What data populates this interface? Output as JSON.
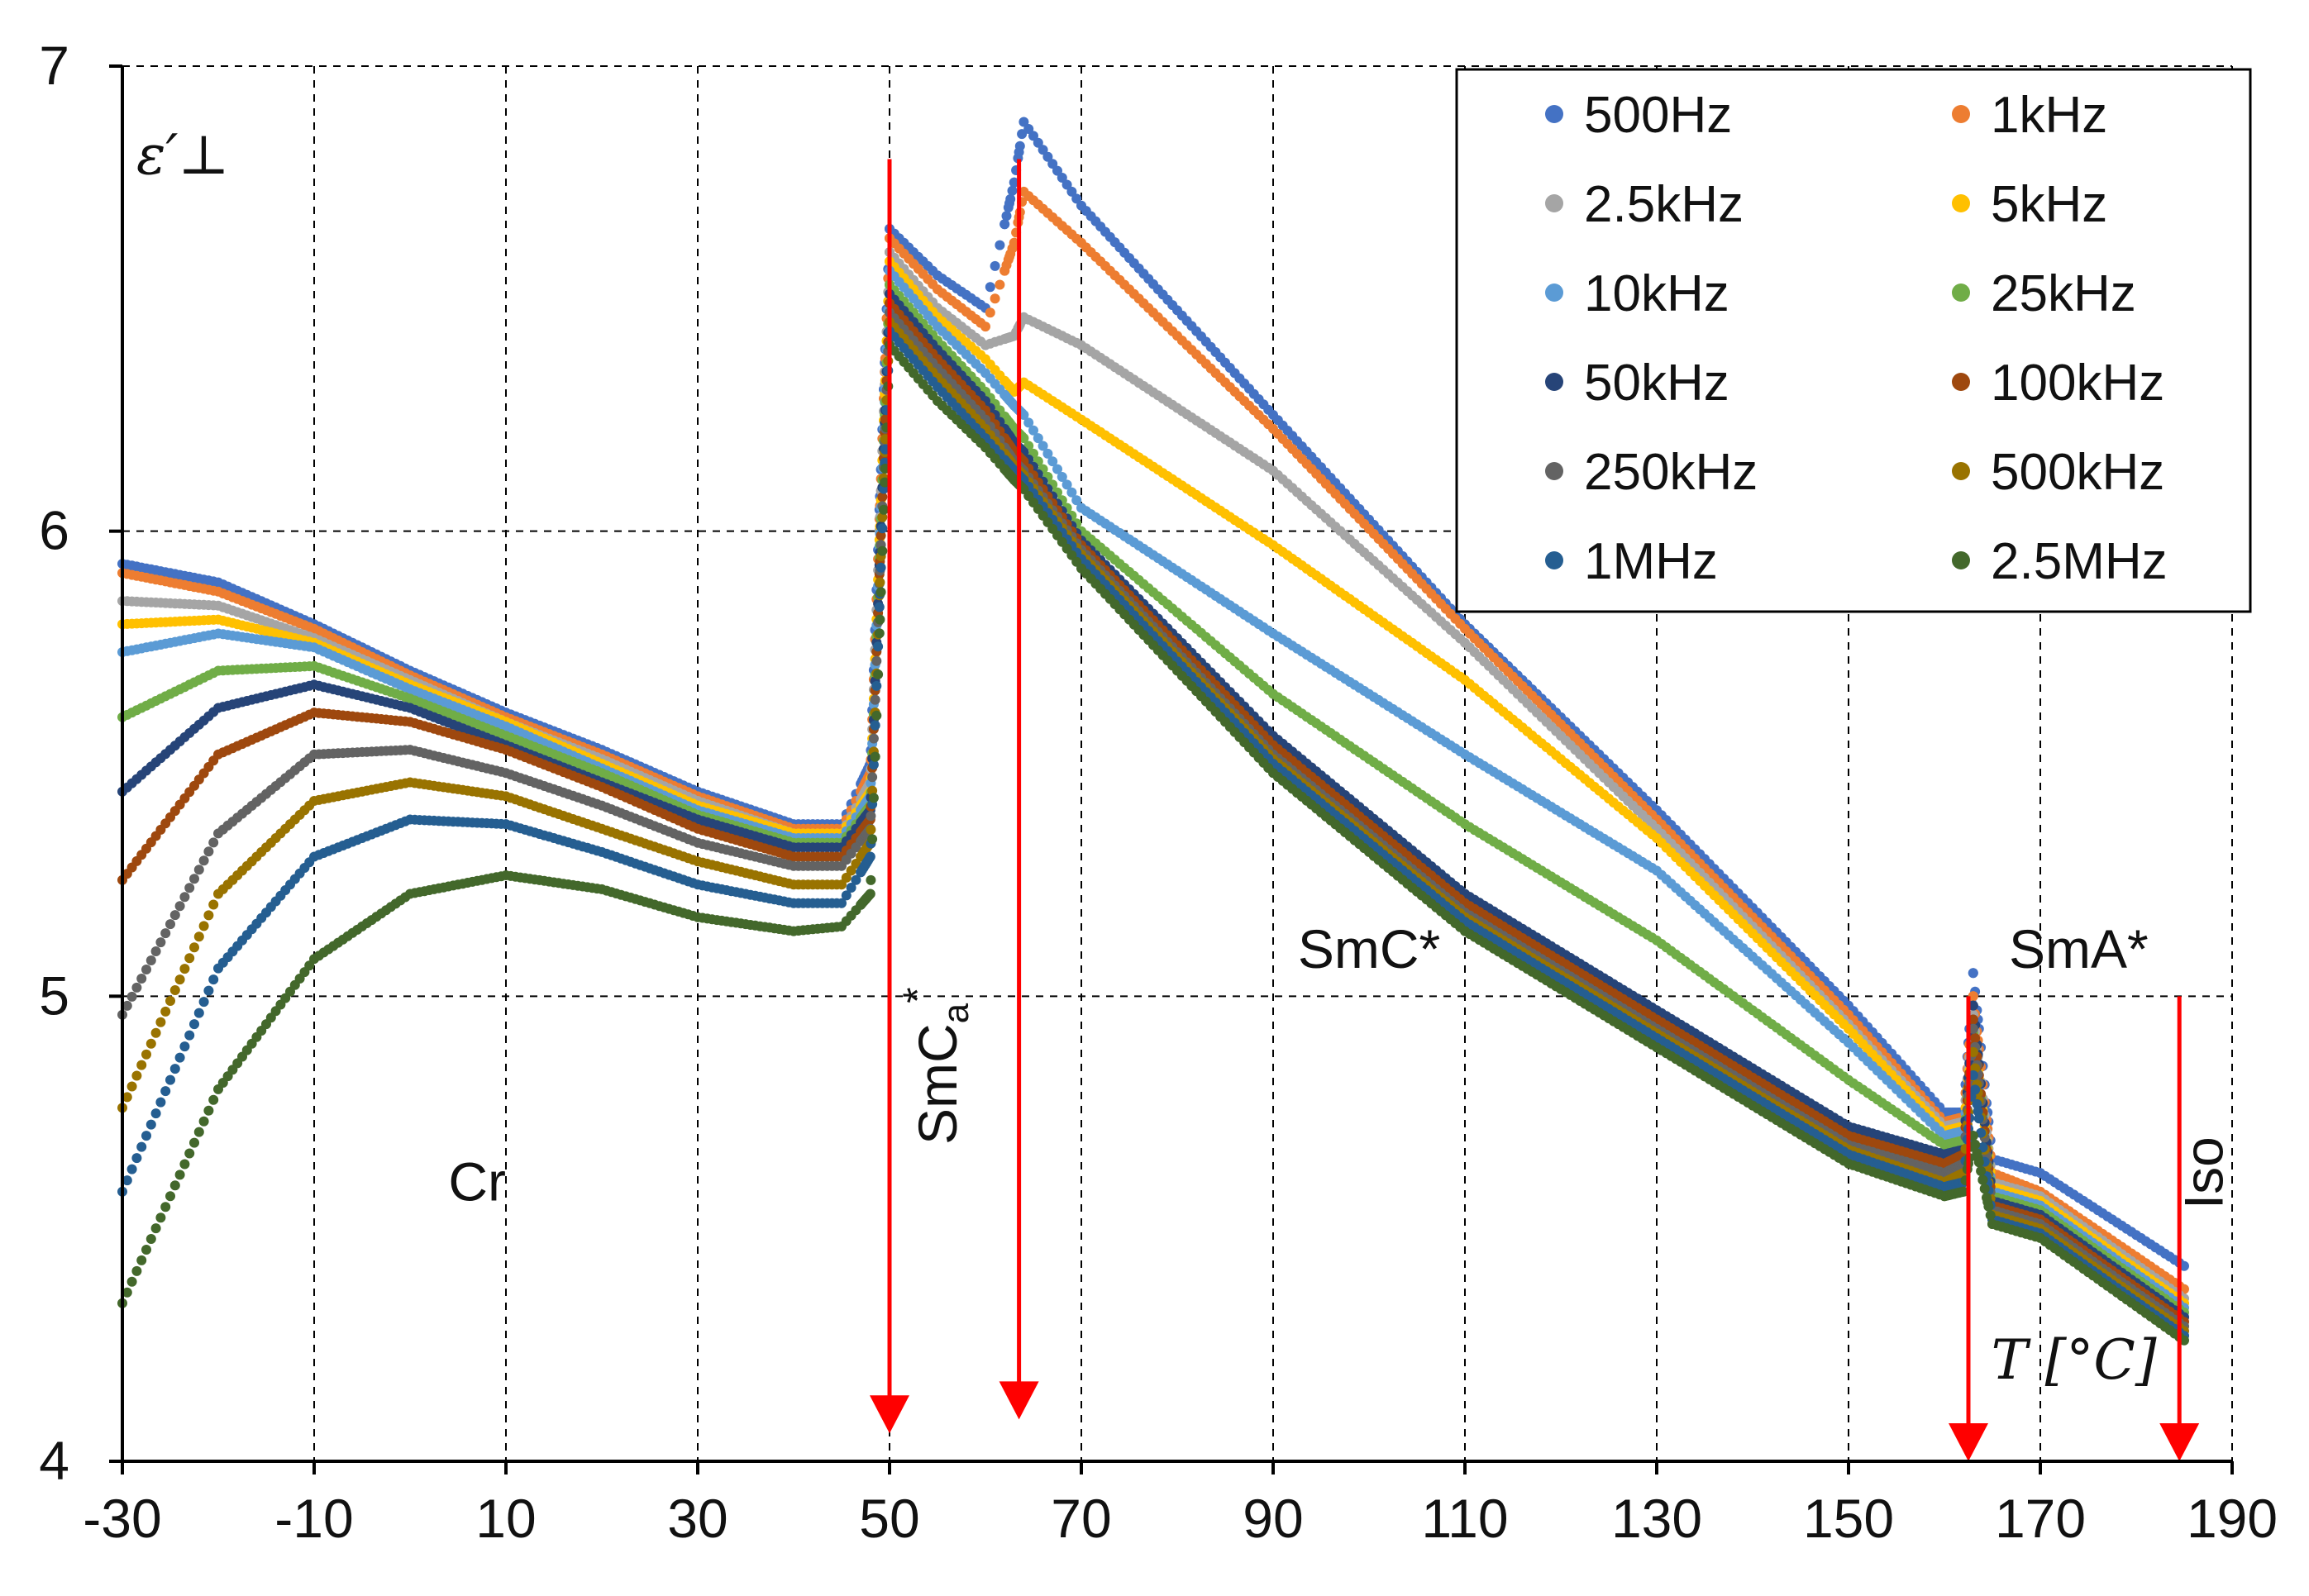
{
  "chart_data": {
    "type": "scatter",
    "title": "",
    "ylabel": "ε′⊥",
    "xlabel": "T [°C]",
    "xlim": [
      -30,
      190
    ],
    "ylim": [
      4,
      7
    ],
    "xticks": [
      "-30",
      "-10",
      "10",
      "30",
      "50",
      "70",
      "90",
      "110",
      "130",
      "150",
      "170",
      "190"
    ],
    "yticks": [
      "4",
      "5",
      "6",
      "7"
    ],
    "grid": true,
    "legend_position": "top-right",
    "x": [
      -30,
      -20,
      -10,
      0,
      10,
      20,
      30,
      40,
      45,
      48,
      50,
      55,
      60,
      63,
      64,
      70,
      90,
      110,
      130,
      150,
      160,
      162,
      163,
      165,
      170,
      185
    ],
    "series": [
      {
        "name": "500Hz",
        "color": "#4472C4",
        "values": [
          5.93,
          5.89,
          5.8,
          5.7,
          5.61,
          5.53,
          5.44,
          5.37,
          5.37,
          5.5,
          6.65,
          6.55,
          6.48,
          6.75,
          6.88,
          6.7,
          6.25,
          5.8,
          5.4,
          4.98,
          4.75,
          4.75,
          5.05,
          4.65,
          4.62,
          4.42
        ]
      },
      {
        "name": "1kHz",
        "color": "#ED7D31",
        "values": [
          5.91,
          5.87,
          5.79,
          5.69,
          5.6,
          5.52,
          5.43,
          5.36,
          5.36,
          5.48,
          6.63,
          6.52,
          6.44,
          6.62,
          6.73,
          6.62,
          6.22,
          5.79,
          5.38,
          4.96,
          4.73,
          4.74,
          5.0,
          4.62,
          4.58,
          4.37
        ]
      },
      {
        "name": "2.5kHz",
        "color": "#A5A5A5",
        "values": [
          5.85,
          5.84,
          5.77,
          5.68,
          5.59,
          5.51,
          5.42,
          5.35,
          5.35,
          5.46,
          6.6,
          6.48,
          6.4,
          6.42,
          6.46,
          6.4,
          6.13,
          5.76,
          5.36,
          4.94,
          4.72,
          4.73,
          4.96,
          4.6,
          4.57,
          4.35
        ]
      },
      {
        "name": "5kHz",
        "color": "#FFC000",
        "values": [
          5.8,
          5.81,
          5.76,
          5.67,
          5.59,
          5.5,
          5.41,
          5.35,
          5.35,
          5.44,
          6.58,
          6.46,
          6.37,
          6.3,
          6.32,
          6.24,
          5.97,
          5.68,
          5.34,
          4.93,
          4.71,
          4.72,
          4.92,
          4.59,
          4.56,
          4.34
        ]
      },
      {
        "name": "10kHz",
        "color": "#5B9BD5",
        "values": [
          5.74,
          5.78,
          5.75,
          5.66,
          5.58,
          5.49,
          5.4,
          5.34,
          5.34,
          5.43,
          6.56,
          6.44,
          6.34,
          6.27,
          6.25,
          6.05,
          5.78,
          5.52,
          5.27,
          4.9,
          4.7,
          4.71,
          4.9,
          4.58,
          4.55,
          4.33
        ]
      },
      {
        "name": "25kHz",
        "color": "#70AD47",
        "values": [
          5.6,
          5.7,
          5.71,
          5.64,
          5.56,
          5.48,
          5.39,
          5.33,
          5.33,
          5.41,
          6.53,
          6.41,
          6.3,
          6.22,
          6.2,
          6.0,
          5.65,
          5.37,
          5.12,
          4.82,
          4.68,
          4.69,
          4.92,
          4.57,
          4.54,
          4.32
        ]
      },
      {
        "name": "50kHz",
        "color": "#264478",
        "values": [
          5.44,
          5.62,
          5.67,
          5.62,
          5.54,
          5.46,
          5.38,
          5.32,
          5.32,
          5.4,
          6.51,
          6.39,
          6.28,
          6.19,
          6.17,
          5.98,
          5.56,
          5.22,
          4.97,
          4.72,
          4.66,
          4.67,
          4.98,
          4.56,
          4.53,
          4.31
        ]
      },
      {
        "name": "100kHz",
        "color": "#9E480E",
        "values": [
          5.25,
          5.52,
          5.61,
          5.59,
          5.53,
          5.45,
          5.36,
          5.3,
          5.3,
          5.38,
          6.49,
          6.37,
          6.26,
          6.17,
          6.15,
          5.97,
          5.54,
          5.2,
          4.95,
          4.7,
          4.64,
          4.66,
          4.95,
          4.55,
          4.52,
          4.3
        ]
      },
      {
        "name": "250kHz",
        "color": "#636363",
        "values": [
          4.96,
          5.35,
          5.52,
          5.53,
          5.48,
          5.41,
          5.33,
          5.28,
          5.28,
          5.36,
          6.47,
          6.35,
          6.24,
          6.15,
          6.13,
          5.96,
          5.52,
          5.18,
          4.93,
          4.68,
          4.62,
          4.64,
          4.93,
          4.54,
          4.51,
          4.29
        ]
      },
      {
        "name": "500kHz",
        "color": "#997300",
        "values": [
          4.76,
          5.22,
          5.42,
          5.46,
          5.43,
          5.36,
          5.29,
          5.24,
          5.24,
          5.33,
          6.45,
          6.33,
          6.22,
          6.14,
          6.12,
          5.95,
          5.51,
          5.17,
          4.92,
          4.67,
          4.6,
          4.62,
          4.88,
          4.53,
          4.5,
          4.28
        ]
      },
      {
        "name": "1MHz",
        "color": "#255E91",
        "values": [
          4.58,
          5.06,
          5.3,
          5.38,
          5.37,
          5.31,
          5.24,
          5.2,
          5.2,
          5.3,
          6.43,
          6.31,
          6.2,
          6.13,
          6.11,
          5.94,
          5.5,
          5.16,
          4.91,
          4.66,
          4.59,
          4.6,
          4.83,
          4.52,
          4.49,
          4.27
        ]
      },
      {
        "name": "2.5MHz",
        "color": "#43682B",
        "values": [
          4.34,
          4.8,
          5.08,
          5.22,
          5.26,
          5.23,
          5.17,
          5.14,
          5.15,
          5.22,
          6.4,
          6.28,
          6.18,
          6.11,
          6.09,
          5.92,
          5.48,
          5.14,
          4.89,
          4.64,
          4.57,
          4.58,
          4.7,
          4.51,
          4.48,
          4.26
        ]
      }
    ],
    "phase_labels": [
      {
        "text": "Cr",
        "x": 7,
        "y": 4.6
      },
      {
        "text": "SmC*",
        "x": 100,
        "y": 5.1
      },
      {
        "text": "SmA*",
        "x": 174,
        "y": 5.1
      }
    ],
    "rotated_labels": [
      {
        "text": "SmC",
        "sub": "a",
        "sup": "*",
        "x": 57,
        "y": 4.85
      },
      {
        "text": "Iso",
        "x": 189,
        "y": 4.62
      }
    ],
    "transition_arrows": [
      {
        "x": 50,
        "y_top": 6.8,
        "y_bottom": 4.06
      },
      {
        "x": 63.5,
        "y_top": 6.8,
        "y_bottom": 4.09
      },
      {
        "x": 162.5,
        "y_top": 5.0,
        "y_bottom": 4.0
      },
      {
        "x": 184.5,
        "y_top": 5.0,
        "y_bottom": 4.0
      }
    ],
    "arrow_color": "#FF0000",
    "xlabel_pos": {
      "x": 173.5,
      "y": 4.22
    }
  }
}
